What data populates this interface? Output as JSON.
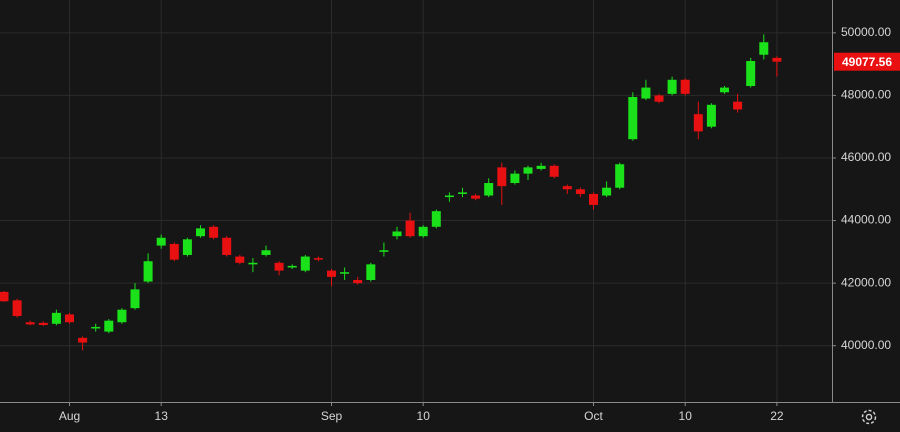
{
  "chart_data": {
    "type": "candlestick",
    "categories": [
      null,
      null,
      null,
      null,
      null,
      "Aug",
      null,
      null,
      null,
      null,
      null,
      null,
      "13",
      null,
      null,
      null,
      null,
      null,
      null,
      null,
      null,
      null,
      null,
      null,
      null,
      "Sep",
      null,
      null,
      null,
      null,
      null,
      null,
      "10",
      null,
      null,
      null,
      null,
      null,
      null,
      null,
      null,
      null,
      null,
      null,
      null,
      "Oct",
      null,
      null,
      null,
      null,
      null,
      null,
      "10",
      null,
      null,
      null,
      null,
      null,
      null,
      "22"
    ],
    "open": [
      41720,
      41450,
      40750,
      40730,
      40700,
      41000,
      40250,
      40550,
      40450,
      40750,
      41200,
      42050,
      43200,
      43250,
      42900,
      43500,
      43800,
      43450,
      42850,
      42600,
      42900,
      42650,
      42500,
      42400,
      42800,
      42400,
      42300,
      42100,
      42100,
      43000,
      43500,
      44000,
      43500,
      43800,
      44750,
      44850,
      44800,
      44800,
      45700,
      45200,
      45500,
      45650,
      45750,
      45100,
      45000,
      44850,
      44800,
      45050,
      46600,
      47900,
      48000,
      48050,
      48500,
      47400,
      47000,
      48100,
      47800,
      48300,
      49300,
      49200
    ],
    "high": [
      41750,
      41500,
      40800,
      40780,
      41150,
      41050,
      40300,
      40700,
      40850,
      41200,
      42000,
      42950,
      43550,
      43300,
      43450,
      43850,
      43850,
      43500,
      42900,
      42800,
      43200,
      42700,
      42600,
      42900,
      42850,
      42450,
      42500,
      42200,
      42650,
      43300,
      43800,
      44250,
      43850,
      44350,
      44900,
      45050,
      44850,
      45350,
      45850,
      45600,
      45750,
      45850,
      45800,
      45150,
      45050,
      44900,
      45250,
      45850,
      48100,
      48500,
      48050,
      48600,
      48550,
      47800,
      47750,
      48300,
      48050,
      49200,
      49950,
      49250
    ],
    "low": [
      41400,
      40900,
      40650,
      40640,
      40650,
      40700,
      39850,
      40450,
      40400,
      40700,
      41150,
      42000,
      43100,
      42700,
      42850,
      43450,
      43400,
      42850,
      42600,
      42350,
      42850,
      42250,
      42450,
      42350,
      42700,
      41900,
      42100,
      41950,
      42050,
      42850,
      43400,
      43450,
      43450,
      43750,
      44600,
      44750,
      44650,
      44750,
      44500,
      45150,
      45300,
      45600,
      45350,
      44850,
      44750,
      44350,
      44750,
      45000,
      46550,
      47850,
      47750,
      48000,
      48000,
      46600,
      46950,
      48050,
      47450,
      48250,
      49150,
      48600
    ],
    "close": [
      41420,
      40950,
      40680,
      40660,
      41050,
      40750,
      40100,
      40600,
      40800,
      41150,
      41800,
      42700,
      43450,
      42750,
      43400,
      43750,
      43450,
      42900,
      42650,
      42650,
      43050,
      42400,
      42550,
      42850,
      42750,
      42200,
      42350,
      42000,
      42600,
      43050,
      43650,
      43500,
      43800,
      44300,
      44800,
      44900,
      44700,
      45200,
      45100,
      45500,
      45700,
      45750,
      45400,
      45000,
      44850,
      44500,
      45050,
      45800,
      47950,
      48250,
      47800,
      48500,
      48050,
      46850,
      47700,
      48250,
      47550,
      49100,
      49700,
      49077.56
    ],
    "up_color": "#1be11b",
    "down_color": "#e81010",
    "ylim": [
      38200,
      51050
    ],
    "yticks": [
      {
        "value": 40000,
        "label": "40000.00"
      },
      {
        "value": 42000,
        "label": "42000.00"
      },
      {
        "value": 44000,
        "label": "44000.00"
      },
      {
        "value": 46000,
        "label": "46000.00"
      },
      {
        "value": 48000,
        "label": "48000.00"
      },
      {
        "value": 50000,
        "label": "50000.00"
      }
    ],
    "grid": true
  }
}
